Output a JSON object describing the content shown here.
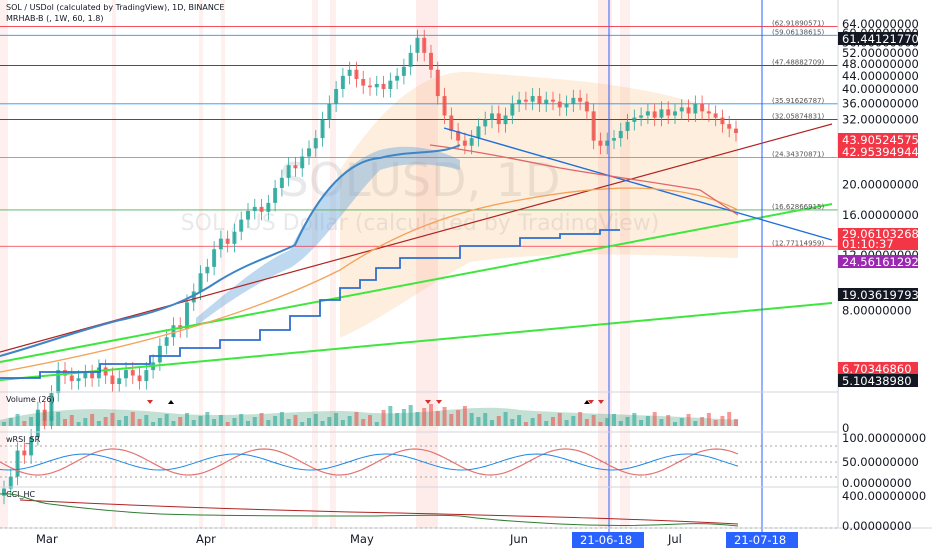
{
  "header": {
    "symbol_line": "SOL / USDol (calculated by TradingView), 1D, BINANCE",
    "indicator_line": "MRHAB-B (, 1W, 60, 1.8)"
  },
  "watermark": {
    "symbol": "SOLUSD, 1D",
    "description": "SOL / US Dollar (calculated by TradingView)"
  },
  "price_axis": {
    "ticks": [
      "64.00000000",
      "60.00000000",
      "56.00000000",
      "52.00000000",
      "48.00000000",
      "44.00000000",
      "40.00000000",
      "36.00000000",
      "32.00000000",
      "28.00000000",
      "20.00000000",
      "16.00000000",
      "12.00000000",
      "8.00000000"
    ],
    "levels_small": [
      "(62.91890571)",
      "(59.06138615)",
      "(47.48882709)",
      "(35.91626787)",
      "(32.05874831)",
      "(24.34370871)",
      "(16.62866915)",
      "(12.77114959)"
    ]
  },
  "tags": {
    "max_price": "61.44121770",
    "level_a": "43.90524575",
    "level_b": "42.95394944",
    "last_price": "29.06103268",
    "countdown": "01:10:37",
    "level_c": "24.56161292",
    "level_d": "19.03619793",
    "level_e": "6.70346860",
    "level_f": "5.10438980"
  },
  "colors": {
    "up": "#26a69a",
    "down": "#ef5350",
    "price_tag": "#f23645",
    "purple_tag": "#9c27b0",
    "black_tag": "#131722",
    "cursor_line": "#2962ff"
  },
  "volume_pane": {
    "label": "Volume (26)",
    "axis_zero": "0"
  },
  "rsi_pane": {
    "label": "wRSI_SR",
    "ticks": [
      "100.00000000",
      "50.00000000",
      "0.00000000"
    ]
  },
  "cci_pane": {
    "label": "CCI_HC",
    "ticks": [
      "400.00000000",
      "0.00000000"
    ]
  },
  "time_axis": {
    "labels": [
      "Mar",
      "Apr",
      "May",
      "Jun",
      "Jul"
    ],
    "cursor_left": "21-06-18",
    "cursor_right": "21-07-18"
  },
  "chart_data": {
    "type": "candlestick",
    "symbol": "SOL / USDol",
    "interval": "1D",
    "y_scale": "log",
    "ylim": [
      4.5,
      66
    ],
    "x_labels": [
      "Mar",
      "Apr",
      "May",
      "Jun",
      "Jul"
    ],
    "series": [
      {
        "name": "SOL / USDol",
        "close": [
          2.2,
          2.4,
          2.9,
          2.8,
          3.2,
          3.9,
          3.6,
          4.4,
          5.2,
          5.0,
          4.8,
          4.9,
          5.1,
          4.9,
          5.3,
          5.0,
          4.7,
          4.9,
          5.2,
          5.0,
          4.8,
          5.2,
          5.5,
          6.2,
          6.6,
          7.2,
          7.0,
          8.5,
          9.2,
          10.5,
          11.0,
          12.5,
          13.5,
          13.0,
          14.2,
          15.5,
          16.5,
          17.0,
          16.4,
          17.5,
          19.5,
          21.0,
          23.0,
          22.5,
          24.5,
          26.0,
          28.0,
          32.0,
          36.0,
          40.0,
          44.0,
          46.0,
          43.0,
          41.0,
          40.5,
          41.5,
          40.0,
          42.5,
          44.0,
          47.0,
          52.0,
          58.0,
          52.0,
          46.0,
          38.0,
          33.0,
          29.5,
          27.5,
          26.5,
          28.0,
          30.5,
          32.0,
          33.5,
          31.0,
          33.0,
          36.0,
          37.0,
          36.5,
          38.0,
          36.0,
          37.0,
          36.5,
          35.0,
          36.0,
          37.5,
          36.5,
          34.0,
          27.5,
          26.5,
          27.5,
          28.0,
          29.5,
          31.5,
          32.5,
          33.0,
          34.0,
          32.5,
          34.5,
          33.0,
          34.0,
          35.0,
          33.5,
          36.0,
          34.0,
          33.5,
          32.5,
          31.0,
          30.0,
          29.06
        ]
      }
    ],
    "horizontal_levels": [
      62.91890571,
      59.06138615,
      47.48882709,
      35.91626787,
      32.05874831,
      24.34370871,
      16.62866915,
      12.77114959
    ]
  }
}
